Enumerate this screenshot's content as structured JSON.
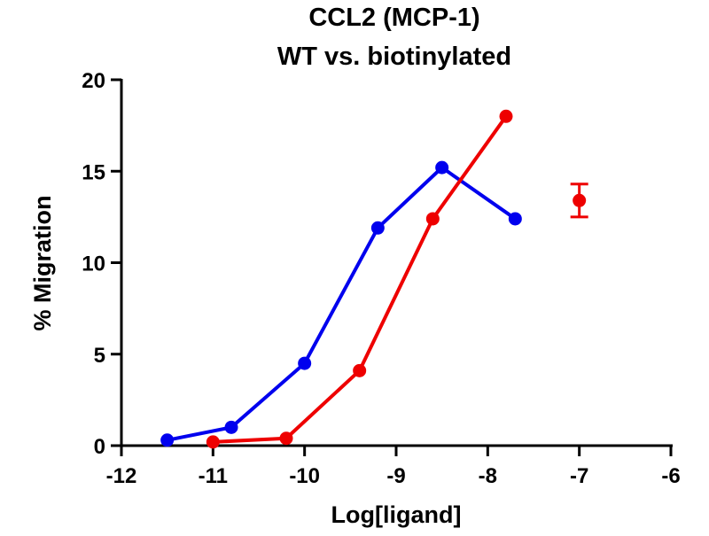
{
  "chart_data": {
    "type": "line",
    "title": [
      "CCL2 (MCP-1)",
      "WT vs. biotinylated"
    ],
    "xlabel": "Log[ligand]",
    "ylabel": "% Migration",
    "xlim": [
      -12,
      -6
    ],
    "ylim": [
      0,
      20
    ],
    "xticks": [
      -12,
      -11,
      -10,
      -9,
      -8,
      -7,
      -6
    ],
    "yticks": [
      0,
      5,
      10,
      15,
      20
    ],
    "grid": false,
    "series": [
      {
        "color": "#0000ee",
        "x": [
          -11.5,
          -10.8,
          -10.0,
          -9.2,
          -8.5,
          -7.7
        ],
        "y": [
          0.3,
          1.0,
          4.5,
          11.9,
          15.2,
          12.4
        ]
      },
      {
        "color": "#ee0000",
        "x": [
          -11.0,
          -10.2,
          -9.4,
          -8.6,
          -7.8,
          -7.0
        ],
        "y": [
          0.2,
          0.4,
          4.1,
          12.4,
          18.0,
          13.4
        ],
        "error": [
          null,
          null,
          null,
          null,
          null,
          0.9
        ],
        "connected_points": 5
      }
    ]
  }
}
